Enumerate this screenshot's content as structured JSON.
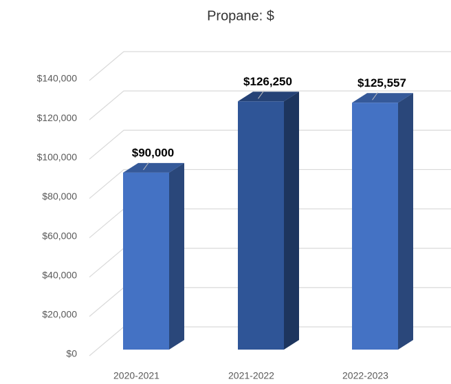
{
  "chart_data": {
    "type": "bar",
    "title": "Propane: $",
    "categories": [
      "2020-2021",
      "2021-2022",
      "2022-2023"
    ],
    "values": [
      90000,
      126250,
      125557
    ],
    "value_labels": [
      "$90,000",
      "$126,250",
      "$125,557"
    ],
    "colors": [
      "#4472c4",
      "#2f5597",
      "#4472c4"
    ],
    "ylim": [
      0,
      140000
    ],
    "yticks": [
      {
        "value": 0,
        "label": "$0"
      },
      {
        "value": 20000,
        "label": "$20,000"
      },
      {
        "value": 40000,
        "label": "$40,000"
      },
      {
        "value": 60000,
        "label": "$60,000"
      },
      {
        "value": 80000,
        "label": "$80,000"
      },
      {
        "value": 100000,
        "label": "$100,000"
      },
      {
        "value": 120000,
        "label": "$120,000"
      },
      {
        "value": 140000,
        "label": "$140,000"
      }
    ],
    "grid": true
  }
}
